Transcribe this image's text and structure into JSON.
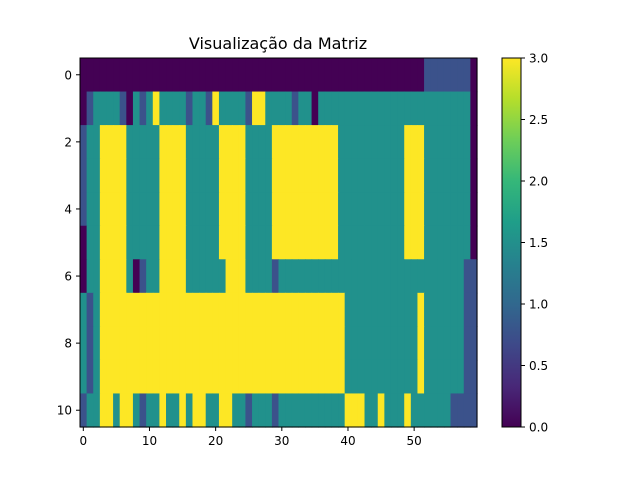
{
  "chart_data": {
    "type": "heatmap",
    "title": "Visualização da Matriz",
    "xlabel": "",
    "ylabel": "",
    "colormap": "viridis",
    "vmin": 0,
    "vmax": 3,
    "colorbar_ticks": [
      "0.0",
      "0.5",
      "1.0",
      "1.5",
      "2.0",
      "2.5",
      "3.0"
    ],
    "x_ticks": [
      "0",
      "10",
      "20",
      "30",
      "40",
      "50"
    ],
    "y_ticks": [
      "0",
      "2",
      "4",
      "6",
      "8",
      "10"
    ],
    "xlim": [
      -0.5,
      59.5
    ],
    "ylim": [
      10.5,
      -0.5
    ],
    "rows": [
      "000000000000000000000000000000000000000000000000000011111110",
      "012222102123222212213222213322221220222222222222222222222220",
      "122333322222333322222333322223333333333222222222233322222220",
      "122333322222333322222333322223333333333222222222233322222220",
      "122333322222333322222333322223333333333222222222233322222220",
      "022333322222333322222333322223333333333222222222233322222220",
      "022333320122333322222233322221222222222222222222222222222211",
      "212333333333333333333333333333333333333322222222222322222211",
      "212333333333333333333333333333333333333322222222222322222211",
      "212333333333333333333333333333333333333322222222222322222211",
      "122332332122322323322332212221222222222233322322232222221111"
    ]
  }
}
